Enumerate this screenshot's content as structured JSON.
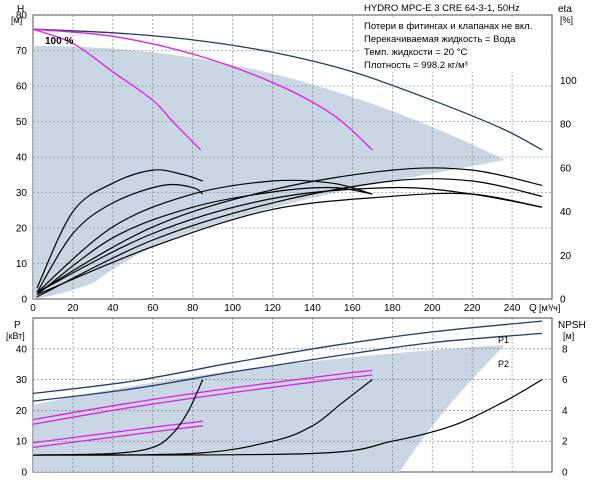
{
  "chart_data": [
    {
      "type": "line",
      "title": "HYDRO MPC-E 3 CRE 64-3-1, 50Hz",
      "info_lines": [
        "Потери в фитингах и клапанах не вкл.",
        "Перекачиваемая жидкость = Вода",
        "Темп. жидкости = 20 °C",
        "Плотность = 998.2 кг/м³"
      ],
      "ylabel": "H",
      "yunit": "[м]",
      "y2label": "eta",
      "y2unit": "[%]",
      "xlabel": "Q",
      "xunit": "[м³/ч]",
      "xlim": [
        0,
        260
      ],
      "ylim": [
        0,
        80
      ],
      "y2lim": [
        0,
        130
      ],
      "x_ticks": [
        0,
        20,
        40,
        60,
        80,
        100,
        120,
        140,
        160,
        180,
        200,
        220,
        240
      ],
      "y_ticks": [
        0,
        10,
        20,
        30,
        40,
        50,
        60,
        70,
        80
      ],
      "y2_ticks": [
        0,
        20,
        40,
        60,
        80,
        100
      ],
      "annotation": "100 %",
      "grid": true,
      "series": [
        {
          "axis": "H",
          "color": "#1f3d6b",
          "x": [
            0,
            40,
            80,
            120,
            160,
            200,
            235,
            255
          ],
          "y": [
            76,
            75,
            73,
            69.5,
            64,
            56,
            48,
            42
          ]
        },
        {
          "axis": "H",
          "color": "#e020e0",
          "x": [
            0,
            20,
            40,
            60,
            70,
            84
          ],
          "y": [
            76,
            72,
            64,
            56,
            50,
            42
          ]
        },
        {
          "axis": "H",
          "color": "#e020e0",
          "x": [
            0,
            40,
            80,
            120,
            150,
            170
          ],
          "y": [
            76,
            74,
            69,
            61,
            52,
            42
          ]
        },
        {
          "axis": "eta",
          "color": "#000000",
          "x": [
            2,
            20,
            40,
            60,
            75,
            85
          ],
          "y": [
            5,
            40,
            53,
            59,
            57,
            54
          ]
        },
        {
          "axis": "eta",
          "color": "#000000",
          "x": [
            2,
            20,
            40,
            65,
            80,
            85
          ],
          "y": [
            3,
            30,
            44,
            52,
            51,
            48
          ]
        },
        {
          "axis": "eta",
          "color": "#000000",
          "x": [
            2,
            40,
            80,
            120,
            150,
            170
          ],
          "y": [
            3,
            33,
            48,
            54,
            53,
            48
          ]
        },
        {
          "axis": "eta",
          "color": "#000000",
          "x": [
            2,
            40,
            80,
            120,
            150,
            170
          ],
          "y": [
            2,
            28,
            42,
            49,
            51,
            48
          ]
        },
        {
          "axis": "eta",
          "color": "#000000",
          "x": [
            2,
            60,
            120,
            180,
            220,
            255
          ],
          "y": [
            3,
            30,
            46,
            51,
            48,
            42
          ]
        },
        {
          "axis": "eta",
          "color": "#000000",
          "x": [
            2,
            60,
            120,
            180,
            220,
            255
          ],
          "y": [
            2,
            24,
            41,
            47,
            48,
            42
          ]
        },
        {
          "axis": "eta",
          "color": "#000000",
          "x": [
            2,
            60,
            120,
            180,
            220,
            255
          ],
          "y": [
            3,
            33,
            50,
            59,
            59,
            52
          ]
        },
        {
          "axis": "eta",
          "color": "#000000",
          "x": [
            2,
            60,
            120,
            180,
            220,
            255
          ],
          "y": [
            1,
            27,
            44,
            54,
            54,
            47
          ]
        }
      ]
    },
    {
      "type": "line",
      "ylabel": "P",
      "yunit": "[кВт]",
      "y2label": "NPSH",
      "y2unit": "[м]",
      "xlim": [
        0,
        260
      ],
      "ylim": [
        0,
        50
      ],
      "y2lim": [
        0,
        10
      ],
      "y_ticks": [
        0,
        10,
        20,
        30,
        40
      ],
      "y2_ticks": [
        0,
        2,
        4,
        6,
        8
      ],
      "grid": true,
      "series": [
        {
          "name": "P1",
          "axis": "P",
          "color": "#1f3d6b",
          "x": [
            0,
            50,
            100,
            150,
            200,
            255
          ],
          "y": [
            25.5,
            29.5,
            35.5,
            41,
            45.5,
            49
          ]
        },
        {
          "name": "P2",
          "axis": "P",
          "color": "#1f3d6b",
          "x": [
            0,
            50,
            100,
            150,
            200,
            255
          ],
          "y": [
            23,
            27,
            32.5,
            37.5,
            42,
            45
          ]
        },
        {
          "axis": "P",
          "color": "#e020e0",
          "x": [
            0,
            40,
            80,
            120,
            150,
            170
          ],
          "y": [
            17,
            21.5,
            25.5,
            29,
            31.5,
            33
          ]
        },
        {
          "axis": "P",
          "color": "#e020e0",
          "x": [
            0,
            40,
            80,
            120,
            150,
            170
          ],
          "y": [
            15.5,
            20,
            24,
            27.5,
            30,
            31.5
          ]
        },
        {
          "axis": "P",
          "color": "#e020e0",
          "x": [
            0,
            30,
            60,
            85
          ],
          "y": [
            9.5,
            12,
            14.5,
            16.5
          ]
        },
        {
          "axis": "P",
          "color": "#e020e0",
          "x": [
            0,
            30,
            60,
            85
          ],
          "y": [
            8,
            10.5,
            13,
            15
          ]
        },
        {
          "axis": "NPSH",
          "color": "#000000",
          "x": [
            0,
            40,
            60,
            70,
            78,
            85
          ],
          "y": [
            1.1,
            1.2,
            1.6,
            2.5,
            4.0,
            6.0
          ]
        },
        {
          "axis": "NPSH",
          "color": "#000000",
          "x": [
            0,
            80,
            120,
            140,
            155,
            170
          ],
          "y": [
            1.1,
            1.2,
            2.0,
            3.0,
            4.5,
            6.0
          ]
        },
        {
          "axis": "NPSH",
          "color": "#000000",
          "x": [
            0,
            140,
            180,
            210,
            235,
            255
          ],
          "y": [
            1.1,
            1.2,
            2.0,
            3.0,
            4.5,
            6.0
          ]
        }
      ]
    }
  ]
}
